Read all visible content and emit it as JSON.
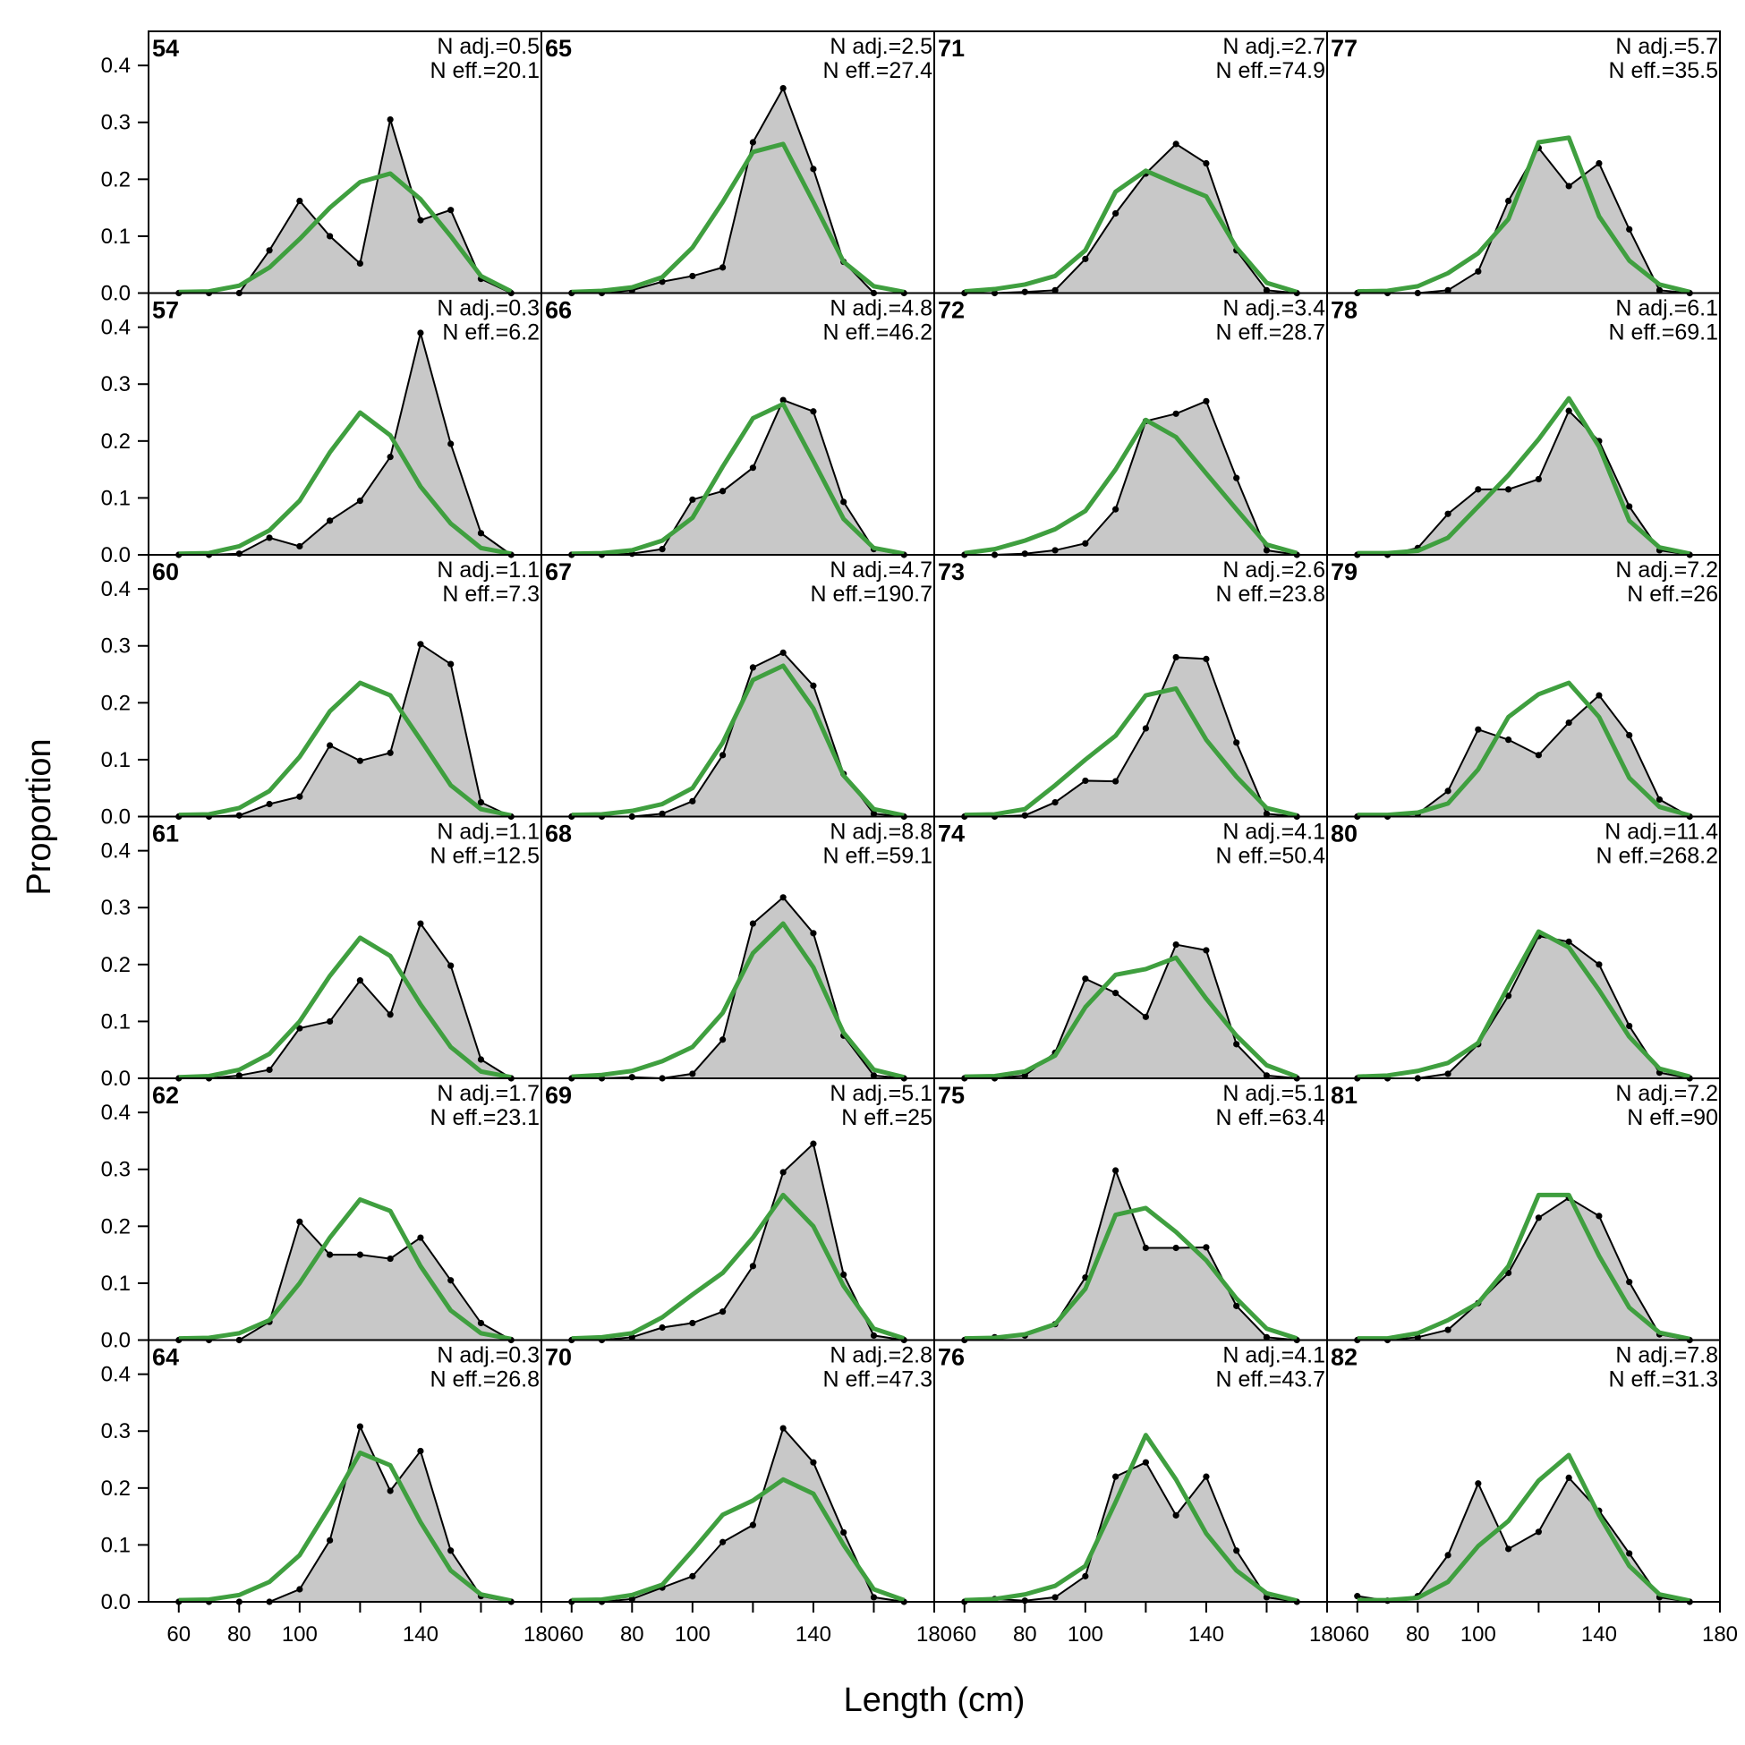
{
  "chart_data": {
    "type": "line",
    "xlabel": "Length (cm)",
    "ylabel": "Proportion",
    "xlim": [
      50,
      180
    ],
    "ylim": [
      0,
      0.46
    ],
    "x_ticks": [
      60,
      80,
      100,
      140,
      180
    ],
    "y_ticks": [
      "0.0",
      "0.1",
      "0.2",
      "0.3",
      "0.4"
    ],
    "x": [
      60,
      70,
      80,
      90,
      100,
      110,
      120,
      130,
      140,
      150,
      160,
      170
    ],
    "obs_color": "#000000",
    "fill_color": "#c8c8c8",
    "exp_color": "#3f9f3f",
    "panels": [
      {
        "label": "54",
        "nadj": "N adj.=0.5",
        "neff": "N eff.=20.1",
        "obs": [
          0,
          0,
          0,
          0.075,
          0.162,
          0.1,
          0.052,
          0.305,
          0.128,
          0.146,
          0.025,
          0
        ],
        "exp": [
          0.002,
          0.003,
          0.013,
          0.045,
          0.095,
          0.15,
          0.195,
          0.21,
          0.165,
          0.1,
          0.03,
          0.003
        ]
      },
      {
        "label": "57",
        "nadj": "N adj.=0.3",
        "neff": "N eff.=6.2",
        "obs": [
          0,
          0,
          0.002,
          0.03,
          0.015,
          0.06,
          0.095,
          0.172,
          0.39,
          0.195,
          0.038,
          0
        ],
        "exp": [
          0.002,
          0.003,
          0.015,
          0.043,
          0.095,
          0.18,
          0.25,
          0.21,
          0.12,
          0.055,
          0.012,
          0.002
        ]
      },
      {
        "label": "60",
        "nadj": "N adj.=1.1",
        "neff": "N eff.=7.3",
        "obs": [
          0,
          0,
          0.002,
          0.022,
          0.035,
          0.125,
          0.098,
          0.112,
          0.303,
          0.268,
          0.025,
          0
        ],
        "exp": [
          0.003,
          0.004,
          0.015,
          0.045,
          0.105,
          0.185,
          0.235,
          0.213,
          0.135,
          0.055,
          0.013,
          0.002
        ]
      },
      {
        "label": "61",
        "nadj": "N adj.=1.1",
        "neff": "N eff.=12.5",
        "obs": [
          0,
          0,
          0.005,
          0.015,
          0.088,
          0.1,
          0.172,
          0.112,
          0.272,
          0.198,
          0.033,
          0
        ],
        "exp": [
          0.002,
          0.004,
          0.015,
          0.043,
          0.1,
          0.18,
          0.247,
          0.215,
          0.13,
          0.055,
          0.012,
          0.002
        ]
      },
      {
        "label": "62",
        "nadj": "N adj.=1.7",
        "neff": "N eff.=23.1",
        "obs": [
          0,
          0,
          0,
          0.032,
          0.208,
          0.15,
          0.15,
          0.143,
          0.18,
          0.105,
          0.03,
          0
        ],
        "exp": [
          0.003,
          0.004,
          0.012,
          0.035,
          0.1,
          0.18,
          0.247,
          0.227,
          0.13,
          0.052,
          0.012,
          0.002
        ]
      },
      {
        "label": "64",
        "nadj": "N adj.=0.3",
        "neff": "N eff.=26.8",
        "obs": [
          0,
          0,
          0,
          0,
          0.022,
          0.108,
          0.308,
          0.195,
          0.265,
          0.09,
          0.01,
          0
        ],
        "exp": [
          0.003,
          0.004,
          0.012,
          0.035,
          0.082,
          0.168,
          0.262,
          0.24,
          0.14,
          0.055,
          0.013,
          0.002
        ]
      },
      {
        "label": "65",
        "nadj": "N adj.=2.5",
        "neff": "N eff.=27.4",
        "obs": [
          0,
          0,
          0.005,
          0.02,
          0.03,
          0.045,
          0.265,
          0.36,
          0.218,
          0.055,
          0,
          0
        ],
        "exp": [
          0.002,
          0.004,
          0.01,
          0.028,
          0.08,
          0.16,
          0.248,
          0.262,
          0.16,
          0.055,
          0.012,
          0.002
        ]
      },
      {
        "label": "66",
        "nadj": "N adj.=4.8",
        "neff": "N eff.=46.2",
        "obs": [
          0,
          0,
          0.002,
          0.01,
          0.097,
          0.112,
          0.153,
          0.272,
          0.252,
          0.093,
          0.01,
          0
        ],
        "exp": [
          0.002,
          0.003,
          0.008,
          0.025,
          0.065,
          0.155,
          0.24,
          0.265,
          0.165,
          0.063,
          0.012,
          0.002
        ]
      },
      {
        "label": "67",
        "nadj": "N adj.=4.7",
        "neff": "N eff.=190.7",
        "obs": [
          0,
          0,
          0,
          0.005,
          0.027,
          0.108,
          0.262,
          0.288,
          0.23,
          0.075,
          0.005,
          0
        ],
        "exp": [
          0.003,
          0.004,
          0.01,
          0.022,
          0.05,
          0.13,
          0.24,
          0.265,
          0.19,
          0.072,
          0.013,
          0.002
        ]
      },
      {
        "label": "68",
        "nadj": "N adj.=8.8",
        "neff": "N eff.=59.1",
        "obs": [
          0,
          0,
          0.002,
          0,
          0.008,
          0.068,
          0.272,
          0.318,
          0.255,
          0.075,
          0.005,
          0
        ],
        "exp": [
          0.003,
          0.006,
          0.013,
          0.03,
          0.055,
          0.115,
          0.22,
          0.272,
          0.195,
          0.08,
          0.015,
          0.002
        ]
      },
      {
        "label": "69",
        "nadj": "N adj.=5.1",
        "neff": "N eff.=25",
        "obs": [
          0,
          0,
          0.005,
          0.022,
          0.03,
          0.05,
          0.13,
          0.295,
          0.345,
          0.115,
          0.008,
          0
        ],
        "exp": [
          0.003,
          0.005,
          0.012,
          0.04,
          0.08,
          0.118,
          0.18,
          0.255,
          0.2,
          0.095,
          0.02,
          0.003
        ]
      },
      {
        "label": "70",
        "nadj": "N adj.=2.8",
        "neff": "N eff.=47.3",
        "obs": [
          0,
          0,
          0.005,
          0.025,
          0.045,
          0.105,
          0.135,
          0.305,
          0.245,
          0.122,
          0.008,
          0
        ],
        "exp": [
          0.003,
          0.004,
          0.012,
          0.03,
          0.09,
          0.153,
          0.178,
          0.215,
          0.19,
          0.1,
          0.022,
          0.003
        ]
      },
      {
        "label": "71",
        "nadj": "N adj.=2.7",
        "neff": "N eff.=74.9",
        "obs": [
          0,
          0,
          0.002,
          0.005,
          0.06,
          0.14,
          0.21,
          0.262,
          0.228,
          0.075,
          0.005,
          0
        ],
        "exp": [
          0.003,
          0.007,
          0.015,
          0.03,
          0.075,
          0.178,
          0.215,
          0.192,
          0.17,
          0.08,
          0.018,
          0.002
        ]
      },
      {
        "label": "72",
        "nadj": "N adj.=3.4",
        "neff": "N eff.=28.7",
        "obs": [
          0,
          0,
          0.002,
          0.008,
          0.02,
          0.08,
          0.235,
          0.248,
          0.27,
          0.135,
          0.008,
          0
        ],
        "exp": [
          0.003,
          0.01,
          0.025,
          0.045,
          0.077,
          0.15,
          0.237,
          0.207,
          0.143,
          0.08,
          0.018,
          0.003
        ]
      },
      {
        "label": "73",
        "nadj": "N adj.=2.6",
        "neff": "N eff.=23.8",
        "obs": [
          0,
          0,
          0.002,
          0.025,
          0.063,
          0.062,
          0.155,
          0.28,
          0.277,
          0.13,
          0.005,
          0
        ],
        "exp": [
          0.003,
          0.004,
          0.013,
          0.055,
          0.1,
          0.142,
          0.213,
          0.225,
          0.135,
          0.07,
          0.015,
          0.002
        ]
      },
      {
        "label": "74",
        "nadj": "N adj.=4.1",
        "neff": "N eff.=50.4",
        "obs": [
          0,
          0,
          0.005,
          0.045,
          0.175,
          0.15,
          0.108,
          0.235,
          0.225,
          0.06,
          0.005,
          0
        ],
        "exp": [
          0.003,
          0.004,
          0.012,
          0.04,
          0.125,
          0.182,
          0.192,
          0.212,
          0.14,
          0.075,
          0.023,
          0.003
        ]
      },
      {
        "label": "75",
        "nadj": "N adj.=5.1",
        "neff": "N eff.=63.4",
        "obs": [
          0,
          0.005,
          0.008,
          0.028,
          0.11,
          0.298,
          0.162,
          0.162,
          0.163,
          0.06,
          0.005,
          0
        ],
        "exp": [
          0.003,
          0.004,
          0.01,
          0.028,
          0.09,
          0.22,
          0.232,
          0.19,
          0.14,
          0.073,
          0.02,
          0.003
        ]
      },
      {
        "label": "76",
        "nadj": "N adj.=4.1",
        "neff": "N eff.=43.7",
        "obs": [
          0,
          0.005,
          0.002,
          0.008,
          0.045,
          0.22,
          0.245,
          0.152,
          0.22,
          0.09,
          0.008,
          0
        ],
        "exp": [
          0.003,
          0.005,
          0.013,
          0.028,
          0.063,
          0.175,
          0.293,
          0.215,
          0.12,
          0.055,
          0.015,
          0.002
        ]
      },
      {
        "label": "77",
        "nadj": "N adj.=5.7",
        "neff": "N eff.=35.5",
        "obs": [
          0,
          0,
          0,
          0.005,
          0.038,
          0.162,
          0.255,
          0.188,
          0.228,
          0.112,
          0.005,
          0
        ],
        "exp": [
          0.003,
          0.004,
          0.012,
          0.035,
          0.07,
          0.13,
          0.265,
          0.273,
          0.135,
          0.057,
          0.015,
          0.002
        ]
      },
      {
        "label": "78",
        "nadj": "N adj.=6.1",
        "neff": "N eff.=69.1",
        "obs": [
          0,
          0,
          0.012,
          0.072,
          0.115,
          0.115,
          0.133,
          0.253,
          0.2,
          0.085,
          0.008,
          0
        ],
        "exp": [
          0.003,
          0.003,
          0.007,
          0.03,
          0.085,
          0.14,
          0.203,
          0.275,
          0.19,
          0.06,
          0.013,
          0.002
        ]
      },
      {
        "label": "79",
        "nadj": "N adj.=7.2",
        "neff": "N eff.=26",
        "obs": [
          0,
          0,
          0.005,
          0.045,
          0.153,
          0.135,
          0.108,
          0.165,
          0.213,
          0.143,
          0.03,
          0
        ],
        "exp": [
          0.003,
          0.003,
          0.007,
          0.023,
          0.083,
          0.175,
          0.215,
          0.235,
          0.175,
          0.068,
          0.017,
          0.002
        ]
      },
      {
        "label": "80",
        "nadj": "N adj.=11.4",
        "neff": "N eff.=268.2",
        "obs": [
          0,
          0,
          0,
          0.008,
          0.06,
          0.145,
          0.25,
          0.24,
          0.2,
          0.092,
          0.01,
          0
        ],
        "exp": [
          0.003,
          0.005,
          0.013,
          0.027,
          0.062,
          0.162,
          0.258,
          0.23,
          0.155,
          0.073,
          0.017,
          0.003
        ]
      },
      {
        "label": "81",
        "nadj": "N adj.=7.2",
        "neff": "N eff.=90",
        "obs": [
          0,
          0,
          0.005,
          0.018,
          0.065,
          0.118,
          0.215,
          0.25,
          0.218,
          0.102,
          0.01,
          0
        ],
        "exp": [
          0.003,
          0.003,
          0.012,
          0.035,
          0.065,
          0.13,
          0.255,
          0.255,
          0.148,
          0.057,
          0.013,
          0.002
        ]
      },
      {
        "label": "82",
        "nadj": "N adj.=7.8",
        "neff": "N eff.=31.3",
        "obs": [
          0.01,
          0.002,
          0.01,
          0.082,
          0.208,
          0.093,
          0.123,
          0.218,
          0.16,
          0.085,
          0.008,
          0
        ],
        "exp": [
          0.003,
          0.003,
          0.007,
          0.035,
          0.098,
          0.142,
          0.213,
          0.258,
          0.152,
          0.063,
          0.013,
          0.002
        ]
      }
    ]
  }
}
